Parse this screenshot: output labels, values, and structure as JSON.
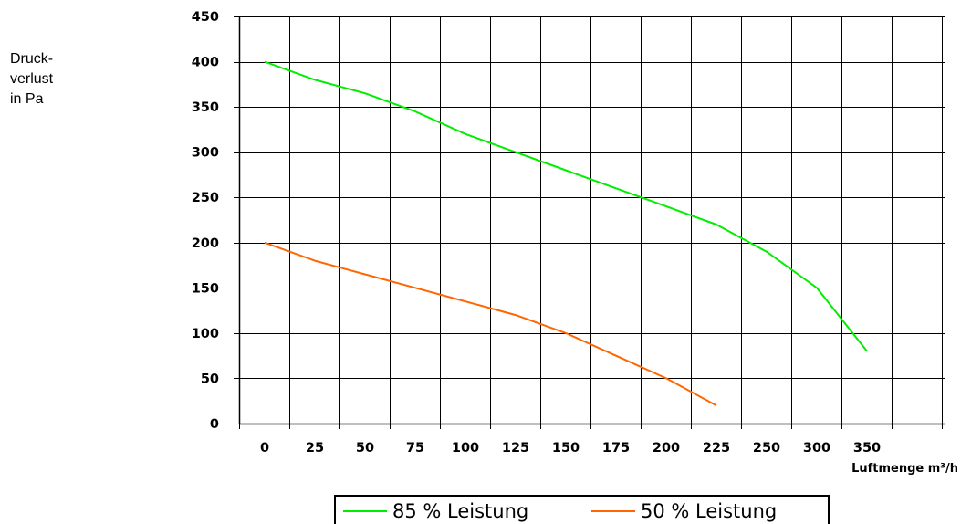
{
  "chart_data": {
    "type": "line",
    "ylabel": [
      "Druck-",
      "verlust",
      "in Pa"
    ],
    "xlabel": "Luftmenge m³/h",
    "ylim": [
      0,
      450
    ],
    "yticks": [
      0,
      50,
      100,
      150,
      200,
      250,
      300,
      350,
      400,
      450
    ],
    "xticks": [
      0,
      25,
      50,
      75,
      100,
      125,
      150,
      175,
      200,
      225,
      250,
      300,
      350
    ],
    "grid": true,
    "legend": "bottom",
    "series": [
      {
        "name": "85 % Leistung",
        "color": "#00ee00",
        "points": [
          [
            0,
            400
          ],
          [
            25,
            380
          ],
          [
            50,
            365
          ],
          [
            75,
            345
          ],
          [
            100,
            320
          ],
          [
            125,
            300
          ],
          [
            150,
            280
          ],
          [
            175,
            260
          ],
          [
            200,
            240
          ],
          [
            225,
            220
          ],
          [
            250,
            190
          ],
          [
            275,
            150
          ],
          [
            300,
            80
          ]
        ]
      },
      {
        "name": "50 % Leistung",
        "color": "#ff6600",
        "points": [
          [
            0,
            200
          ],
          [
            25,
            180
          ],
          [
            50,
            165
          ],
          [
            75,
            150
          ],
          [
            100,
            135
          ],
          [
            125,
            120
          ],
          [
            150,
            100
          ],
          [
            175,
            75
          ],
          [
            200,
            50
          ],
          [
            225,
            20
          ]
        ]
      }
    ]
  }
}
